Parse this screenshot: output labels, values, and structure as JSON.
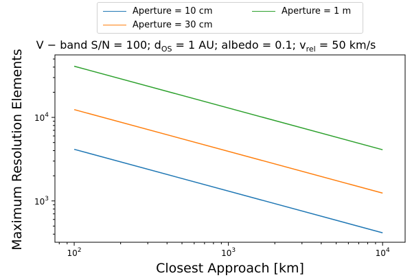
{
  "chart_data": {
    "type": "line",
    "title_parts": {
      "a": "V − band S/N = 100;  d",
      "a_sub": "OS",
      "b": " = 1 AU;  albedo = 0.1; v",
      "b_sub": "rel",
      "c": " = 50 km/s"
    },
    "xlabel": "Closest Approach [km]",
    "ylabel": "Maximum Resolution Elements",
    "xscale": "log",
    "yscale": "log",
    "xlim": [
      75,
      14000
    ],
    "ylim": [
      320,
      56000
    ],
    "xticks": [
      {
        "value": 100,
        "base": "10",
        "exp": "2"
      },
      {
        "value": 1000,
        "base": "10",
        "exp": "3"
      },
      {
        "value": 10000,
        "base": "10",
        "exp": "4"
      }
    ],
    "yticks": [
      {
        "value": 1000,
        "base": "10",
        "exp": "3"
      },
      {
        "value": 10000,
        "base": "10",
        "exp": "4"
      }
    ],
    "grid": false,
    "legend_position": "top-center",
    "series": [
      {
        "name": "Aperture = 10 cm",
        "color": "#1f77b4",
        "x": [
          100,
          10000
        ],
        "y": [
          4150,
          415
        ]
      },
      {
        "name": "Aperture = 30 cm",
        "color": "#ff7f0e",
        "x": [
          100,
          10000
        ],
        "y": [
          12400,
          1240
        ]
      },
      {
        "name": "Aperture = 1 m",
        "color": "#2ca02c",
        "x": [
          100,
          10000
        ],
        "y": [
          41000,
          4100
        ]
      }
    ]
  }
}
